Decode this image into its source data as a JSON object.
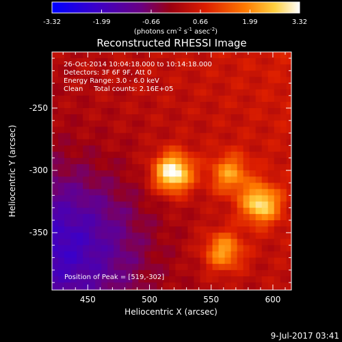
{
  "colorbar": {
    "tick_labels": [
      "-3.32",
      "-1.99",
      "-0.66",
      "0.66",
      "1.99",
      "3.32"
    ],
    "tick_values": [
      -3.32,
      -1.99,
      -0.66,
      0.66,
      1.99,
      3.32
    ],
    "range": [
      -3.32,
      3.32
    ],
    "units_base": "(photons cm",
    "units_sup1": "-2",
    "units_mid": " s",
    "units_sup2": "-1",
    "units_mid2": " asec",
    "units_sup3": "-2",
    "units_end": ")"
  },
  "plot": {
    "title": "Reconstructed RHESSI Image",
    "info_lines": [
      "26-Oct-2014 10:04:18.000 to 10:14:18.000",
      "Detectors: 3F 6F 9F, Att 0",
      "Energy Range: 3.0 - 6.0 keV",
      "Clean     Total counts: 2.16E+05"
    ],
    "peak_text": "Position of Peak = [519,-302]",
    "xlabel": "Heliocentric X (arcsec)",
    "ylabel": "Heliocentric Y (arcsec)",
    "x_ticks": [
      "450",
      "500",
      "550",
      "600"
    ],
    "y_ticks": [
      "-250",
      "-300",
      "-350"
    ],
    "timestamp": "9-Jul-2017 03:41"
  },
  "chart_data": {
    "type": "heatmap",
    "title": "Reconstructed RHESSI Image",
    "xlabel": "Heliocentric X (arcsec)",
    "ylabel": "Heliocentric Y (arcsec)",
    "xlim": [
      421,
      615
    ],
    "ylim": [
      -396,
      -205
    ],
    "x_ticks": [
      450,
      500,
      550,
      600
    ],
    "y_ticks": [
      -250,
      -300,
      -350
    ],
    "color_range": [
      -3.32,
      3.32
    ],
    "peak": {
      "x": 519,
      "y": -302
    },
    "sources": [
      {
        "x": 519,
        "y": -302,
        "amp": 3.3
      },
      {
        "x": 565,
        "y": -303,
        "amp": 1.8
      },
      {
        "x": 590,
        "y": -327,
        "amp": 2.6
      },
      {
        "x": 560,
        "y": -365,
        "amp": 2.0
      }
    ]
  },
  "colors": {
    "background": "#000000",
    "text": "#ffffff",
    "scale": [
      "#0000ff",
      "#3c00a0",
      "#6e0064",
      "#a00000",
      "#dc1e00",
      "#ff7800",
      "#ffd23c",
      "#ffffff"
    ]
  }
}
